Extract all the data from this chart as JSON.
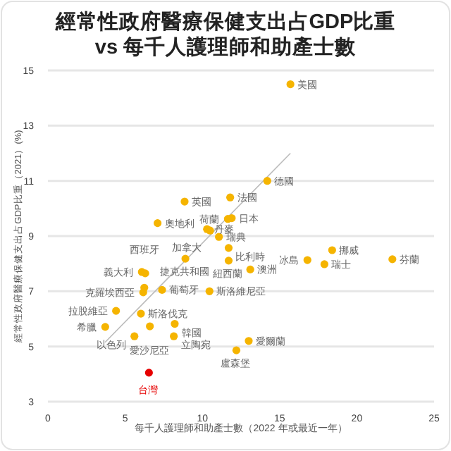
{
  "chart_data": {
    "type": "scatter",
    "title": "經常性政府醫療保健支出占GDP比重\nvs 每千人護理師和助產士數",
    "xlabel": "每千人護理師和助產士數（2022 年或最近一年）",
    "ylabel": "經常性政府醫療保健支出占GDP比重（2021）(%)",
    "xlim": [
      0,
      25
    ],
    "xticks": [
      0,
      5,
      10,
      15,
      20,
      25
    ],
    "ylim": [
      3,
      15
    ],
    "yticks": [
      3,
      5,
      7,
      9,
      11,
      13,
      15
    ],
    "grid": "y",
    "series": [
      {
        "type": "line",
        "color": "#bbbbbb",
        "x": [
          3.7,
          15.7
        ],
        "values": [
          5.15,
          12.0
        ]
      },
      {
        "marker": "circle",
        "x": [
          15.7,
          11.8,
          14.2,
          8.85,
          11.65,
          11.9,
          7.1,
          10.5,
          10.3,
          11.07,
          11.7,
          8.9,
          11.7,
          13.1,
          6.08,
          6.3,
          6.24,
          6.17,
          7.39,
          10.46,
          4.41,
          6.02,
          8.21,
          3.71,
          6.6,
          5.6,
          8.15,
          13.0,
          12.2,
          18.4,
          16.8,
          17.9,
          22.3,
          6.54
        ],
        "values": [
          14.5,
          10.4,
          11.0,
          10.25,
          9.62,
          9.65,
          9.47,
          9.2,
          9.25,
          8.97,
          8.57,
          8.18,
          8.11,
          7.79,
          7.7,
          7.65,
          7.13,
          6.96,
          7.05,
          7.0,
          6.29,
          6.19,
          5.82,
          5.71,
          5.73,
          5.37,
          5.37,
          5.2,
          4.86,
          8.49,
          8.13,
          7.98,
          8.16,
          4.05
        ],
        "colors": [
          "#f5b400",
          "#f5b400",
          "#f5b400",
          "#f5b400",
          "#f5b400",
          "#f5b400",
          "#f5b400",
          "#f5b400",
          "#f5b400",
          "#f5b400",
          "#f5b400",
          "#f5b400",
          "#f5b400",
          "#f5b400",
          "#f5b400",
          "#f5b400",
          "#f5b400",
          "#f5b400",
          "#f5b400",
          "#f5b400",
          "#f5b400",
          "#f5b400",
          "#f5b400",
          "#f5b400",
          "#f5b400",
          "#f5b400",
          "#f5b400",
          "#f5b400",
          "#f5b400",
          "#f5b400",
          "#f5b400",
          "#f5b400",
          "#f5b400",
          "#e60000"
        ]
      }
    ],
    "annotations": [
      {
        "text": "美國",
        "x": 15.7,
        "y": 14.5
      },
      {
        "text": "法國",
        "x": 11.8,
        "y": 10.4
      },
      {
        "text": "德國",
        "x": 14.2,
        "y": 11.0
      },
      {
        "text": "英國",
        "x": 8.85,
        "y": 10.25
      },
      {
        "text": "荷蘭",
        "x": 11.65,
        "y": 9.62
      },
      {
        "text": "日本",
        "x": 11.9,
        "y": 9.65
      },
      {
        "text": "奧地利",
        "x": 7.1,
        "y": 9.47
      },
      {
        "text": "加拿大",
        "x": 10.5,
        "y": 9.2
      },
      {
        "text": "丹麥",
        "x": 10.3,
        "y": 9.25
      },
      {
        "text": "瑞典",
        "x": 11.07,
        "y": 8.97
      },
      {
        "text": "比利時",
        "x": 11.7,
        "y": 8.57
      },
      {
        "text": "捷克共和國",
        "x": 8.9,
        "y": 8.18
      },
      {
        "text": "紐西蘭",
        "x": 11.7,
        "y": 8.11
      },
      {
        "text": "澳洲",
        "x": 13.1,
        "y": 7.79
      },
      {
        "text": "義大利",
        "x": 6.08,
        "y": 7.7
      },
      {
        "text": "西班牙",
        "x": 6.3,
        "y": 7.65
      },
      {
        "text": "克羅埃西亞",
        "x": 6.17,
        "y": 6.96
      },
      {
        "text": "葡萄牙",
        "x": 7.39,
        "y": 7.05
      },
      {
        "text": "斯洛維尼亞",
        "x": 10.46,
        "y": 7.0
      },
      {
        "text": "拉脫維亞",
        "x": 4.41,
        "y": 6.29
      },
      {
        "text": "斯洛伐克",
        "x": 6.02,
        "y": 6.19
      },
      {
        "text": "韓國",
        "x": 8.21,
        "y": 5.82
      },
      {
        "text": "希臘",
        "x": 3.71,
        "y": 5.71
      },
      {
        "text": "愛沙尼亞",
        "x": 6.6,
        "y": 5.73
      },
      {
        "text": "以色列",
        "x": 5.6,
        "y": 5.37
      },
      {
        "text": "立陶宛",
        "x": 8.15,
        "y": 5.37
      },
      {
        "text": "愛爾蘭",
        "x": 13.0,
        "y": 5.2
      },
      {
        "text": "盧森堡",
        "x": 12.2,
        "y": 4.86
      },
      {
        "text": "挪威",
        "x": 18.4,
        "y": 8.49
      },
      {
        "text": "冰島",
        "x": 16.8,
        "y": 8.13
      },
      {
        "text": "瑞士",
        "x": 17.9,
        "y": 7.98
      },
      {
        "text": "芬蘭",
        "x": 22.3,
        "y": 8.16
      },
      {
        "text": "台灣",
        "x": 6.54,
        "y": 4.05
      }
    ]
  }
}
